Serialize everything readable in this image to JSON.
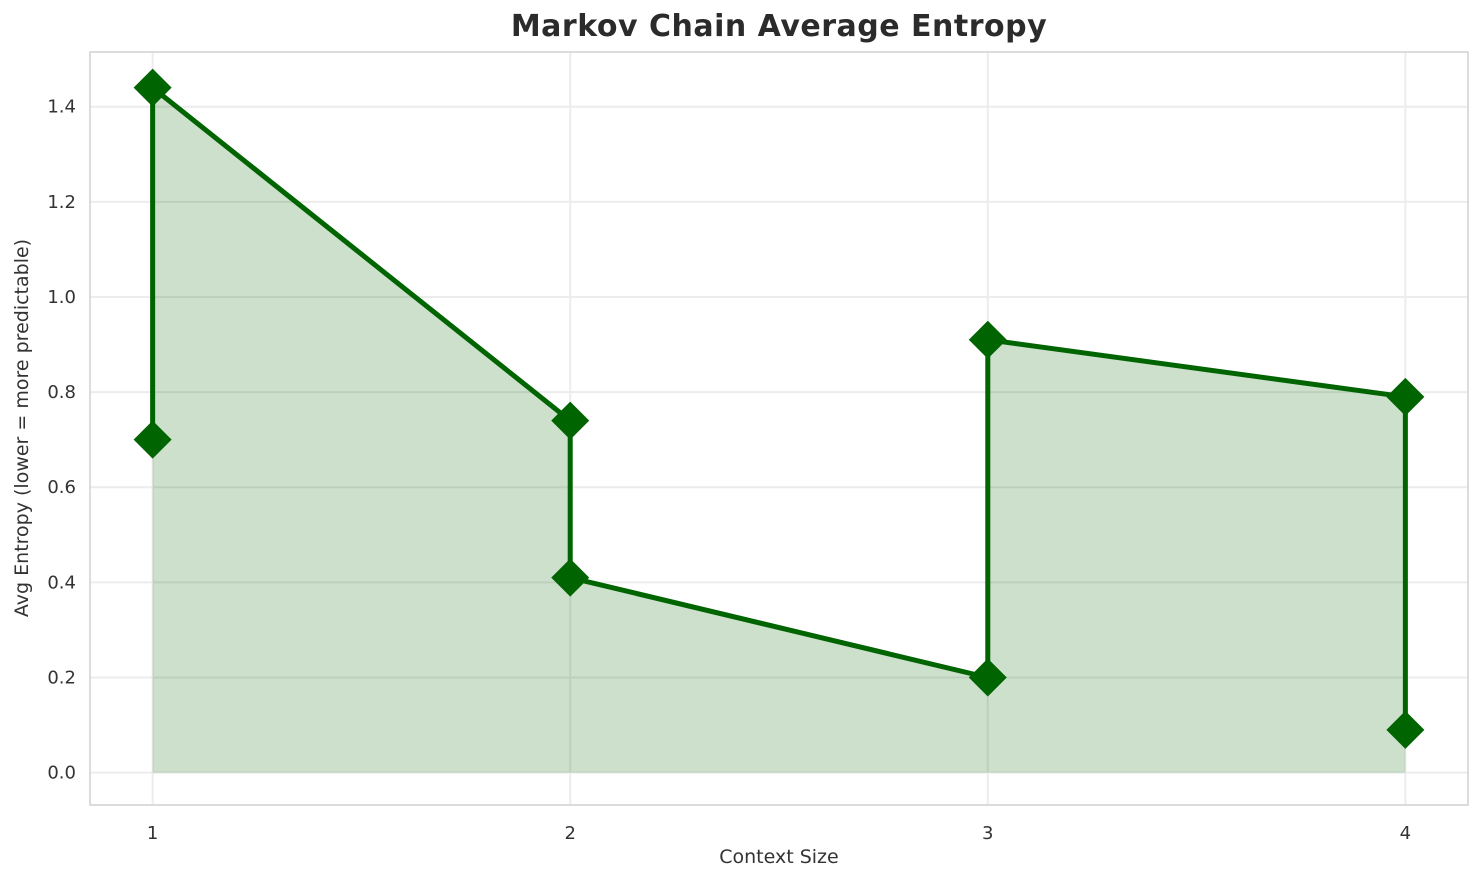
{
  "chart_data": {
    "type": "line",
    "title": "Markov Chain Average Entropy",
    "xlabel": "Context Size",
    "ylabel": "Avg Entropy (lower = more predictable)",
    "x": [
      1,
      1,
      2,
      2,
      3,
      3,
      4,
      4
    ],
    "y": [
      0.7,
      1.44,
      0.74,
      0.41,
      0.2,
      0.91,
      0.79,
      0.09
    ],
    "xticks": [
      1,
      2,
      3,
      4
    ],
    "yticks": [
      0.0,
      0.2,
      0.4,
      0.6,
      0.8,
      1.0,
      1.2,
      1.4
    ],
    "xlim": [
      0.85,
      4.15
    ],
    "ylim": [
      -0.068,
      1.515
    ],
    "grid": true,
    "legend_position": "none",
    "marker": "diamond",
    "fill_to_zero": true,
    "colors": {
      "line": "#006400",
      "fill": "rgba(0,100,0,0.2)",
      "grid": "#ececec",
      "spine": "#d4d4d4",
      "tick_text": "#333333",
      "title_text": "#2b2b2b"
    }
  }
}
